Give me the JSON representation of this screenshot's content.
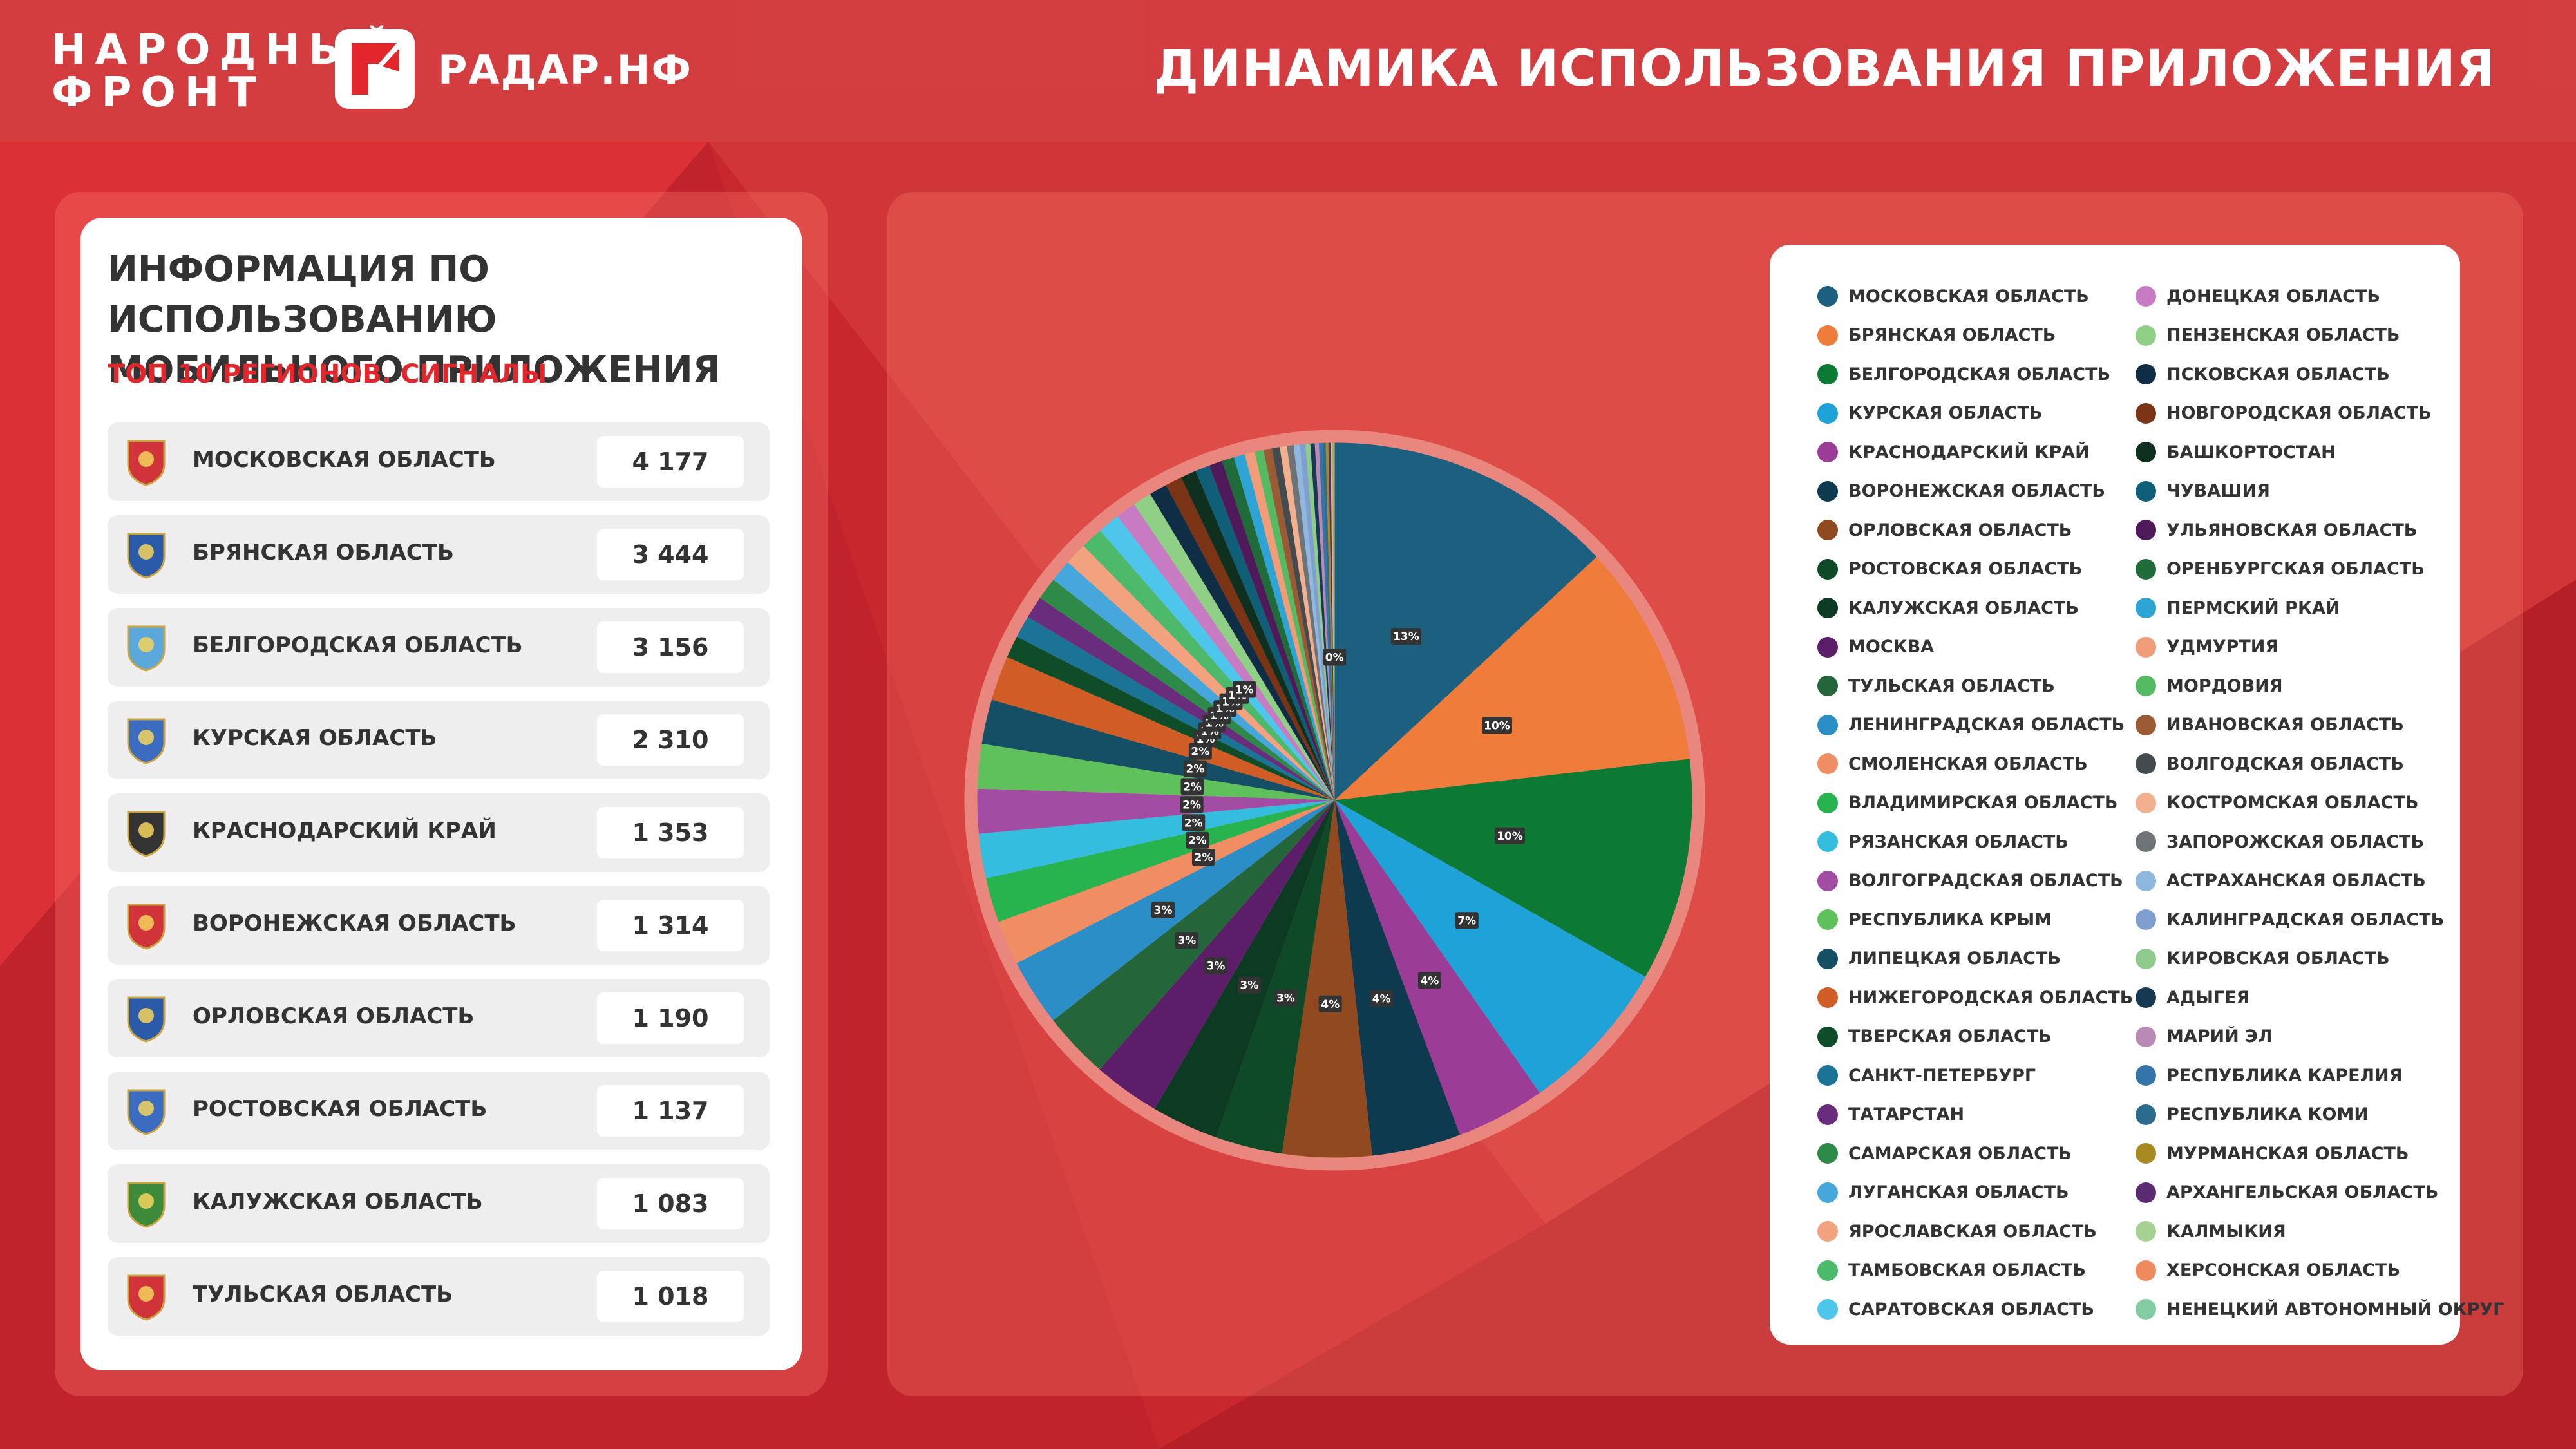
{
  "header": {
    "brand_line1": "НАРОДНЫЙ",
    "brand_line2": "ФРОНТ",
    "app_name": "РАДАР.НФ",
    "page_title": "ДИНАМИКА ИСПОЛЬЗОВАНИЯ ПРИЛОЖЕНИЯ"
  },
  "info_card": {
    "title": "ИНФОРМАЦИЯ ПО ИСПОЛЬЗОВАНИЮ МОБИЛЬНОГО ПРИЛОЖЕНИЯ",
    "subtitle": "ТОП 10 РЕГИОНОВ. СИГНАЛЫ",
    "regions": [
      {
        "name": "МОСКОВСКАЯ ОБЛАСТЬ",
        "value": "4 177",
        "emblem": "moscow-oblast-emblem",
        "emblem_color": "#d0343a"
      },
      {
        "name": "БРЯНСКАЯ ОБЛАСТЬ",
        "value": "3 444",
        "emblem": "bryansk-emblem",
        "emblem_color": "#2a5aa8"
      },
      {
        "name": "БЕЛГОРОДСКАЯ ОБЛАСТЬ",
        "value": "3 156",
        "emblem": "belgorod-emblem",
        "emblem_color": "#5aa8dc"
      },
      {
        "name": "КУРСКАЯ ОБЛАСТЬ",
        "value": "2 310",
        "emblem": "kursk-emblem",
        "emblem_color": "#3b6cc0"
      },
      {
        "name": "КРАСНОДАРСКИЙ КРАЙ",
        "value": "1 353",
        "emblem": "krasnodar-emblem",
        "emblem_color": "#333333"
      },
      {
        "name": "ВОРОНЕЖСКАЯ ОБЛАСТЬ",
        "value": "1 314",
        "emblem": "voronezh-emblem",
        "emblem_color": "#d0343a"
      },
      {
        "name": "ОРЛОВСКАЯ ОБЛАСТЬ",
        "value": "1 190",
        "emblem": "orel-emblem",
        "emblem_color": "#2a5aa8"
      },
      {
        "name": "РОСТОВСКАЯ ОБЛАСТЬ",
        "value": "1 137",
        "emblem": "rostov-emblem",
        "emblem_color": "#3b6cc0"
      },
      {
        "name": "КАЛУЖСКАЯ ОБЛАСТЬ",
        "value": "1 083",
        "emblem": "kaluga-emblem",
        "emblem_color": "#3d8a3a"
      },
      {
        "name": "ТУЛЬСКАЯ ОБЛАСТЬ",
        "value": "1 018",
        "emblem": "tula-emblem",
        "emblem_color": "#d0343a"
      }
    ]
  },
  "chart_data": {
    "type": "pie",
    "categories": [
      "МОСКОВСКАЯ ОБЛАСТЬ",
      "БРЯНСКАЯ ОБЛАСТЬ",
      "БЕЛГОРОДСКАЯ ОБЛАСТЬ",
      "КУРСКАЯ ОБЛАСТЬ",
      "КРАСНОДАРСКИЙ КРАЙ",
      "ВОРОНЕЖСКАЯ ОБЛАСТЬ",
      "ОРЛОВСКАЯ ОБЛАСТЬ",
      "РОСТОВСКАЯ ОБЛАСТЬ",
      "КАЛУЖСКАЯ ОБЛАСТЬ",
      "МОСКВА",
      "ТУЛЬСКАЯ ОБЛАСТЬ",
      "ЛЕНИНГРАДСКАЯ ОБЛАСТЬ",
      "СМОЛЕНСКАЯ ОБЛАСТЬ",
      "ВЛАДИМИРСКАЯ ОБЛАСТЬ",
      "РЯЗАНСКАЯ ОБЛАСТЬ",
      "ВОЛГОГРАДСКАЯ ОБЛАСТЬ",
      "РЕСПУБЛИКА КРЫМ",
      "ЛИПЕЦКАЯ ОБЛАСТЬ",
      "НИЖЕГОРОДСКАЯ ОБЛАСТЬ",
      "ТВЕРСКАЯ ОБЛАСТЬ",
      "САНКТ-ПЕТЕРБУРГ",
      "ТАТАРСТАН",
      "САМАРСКАЯ ОБЛАСТЬ",
      "ЛУГАНСКАЯ ОБЛАСТЬ",
      "ЯРОСЛАВСКАЯ ОБЛАСТЬ",
      "ТАМБОВСКАЯ ОБЛАСТЬ",
      "САРАТОВСКАЯ ОБЛАСТЬ",
      "ДОНЕЦКАЯ ОБЛАСТЬ",
      "ПЕНЗЕНСКАЯ ОБЛАСТЬ",
      "ПСКОВСКАЯ ОБЛАСТЬ",
      "НОВГОРОДСКАЯ ОБЛАСТЬ",
      "БАШКОРТОСТАН",
      "ЧУВАШИЯ",
      "УЛЬЯНОВСКАЯ ОБЛАСТЬ",
      "ОРЕНБУРГСКАЯ ОБЛАСТЬ",
      "ПЕРМСКИЙ РКАЙ",
      "УДМУРТИЯ",
      "МОРДОВИЯ",
      "ИВАНОВСКАЯ ОБЛАСТЬ",
      "ВОЛГОДСКАЯ ОБЛАСТЬ",
      "КОСТРОМСКАЯ ОБЛАСТЬ",
      "ЗАПОРОЖСКАЯ ОБЛАСТЬ",
      "АСТРАХАНСКАЯ ОБЛАСТЬ",
      "КАЛИНГРАДСКАЯ ОБЛАСТЬ",
      "КИРОВСКАЯ ОБЛАСТЬ",
      "АДЫГЕЯ",
      "МАРИЙ ЭЛ",
      "РЕСПУБЛИКА КАРЕЛИЯ",
      "РЕСПУБЛИКА КОМИ",
      "МУРМАНСКАЯ ОБЛАСТЬ",
      "АРХАНГЕЛЬСКАЯ ОБЛАСТЬ",
      "КАЛМЫКИЯ",
      "ХЕРСОНСКАЯ ОБЛАСТЬ",
      "НЕНЕЦКИЙ АВТОНОМНЫЙ ОКРУГ"
    ],
    "values": [
      13,
      10,
      10,
      7,
      4,
      4,
      4,
      3,
      3,
      3,
      3,
      3,
      2,
      2,
      2,
      2,
      2,
      2,
      2,
      1,
      1,
      1,
      1,
      1,
      1,
      1,
      1,
      0.9,
      0.85,
      0.8,
      0.75,
      0.7,
      0.65,
      0.6,
      0.55,
      0.5,
      0.45,
      0.4,
      0.38,
      0.35,
      0.32,
      0.3,
      0.27,
      0.25,
      0.22,
      0.2,
      0.18,
      0.16,
      0.14,
      0.12,
      0.1,
      0.08,
      0.06,
      0.04
    ],
    "labels": [
      "13%",
      "10%",
      "10%",
      "7%",
      "4%",
      "4%",
      "4%",
      "3%",
      "3%",
      "3%",
      "3%",
      "3%",
      "2%",
      "2%",
      "2%",
      "2%",
      "2%",
      "2%",
      "2%",
      "1%",
      "1%",
      "1%",
      "1%",
      "1%",
      "1%",
      "1%",
      "1%",
      "",
      "",
      "",
      "",
      "",
      "",
      "",
      "",
      "",
      "",
      "",
      "",
      "",
      "",
      "",
      "",
      "",
      "",
      "",
      "",
      "",
      "",
      "",
      "",
      "",
      "",
      "0%"
    ],
    "colors": [
      "#1c5f7e",
      "#f07c3c",
      "#0c7a35",
      "#1fa2d8",
      "#9b3d96",
      "#0e3a4f",
      "#914920",
      "#0e4a28",
      "#0c3a22",
      "#5c1e68",
      "#24653a",
      "#2b8ec6",
      "#f08d63",
      "#27b34d",
      "#35bde0",
      "#a24ca4",
      "#5fc15b",
      "#144f66",
      "#d05c26",
      "#0f4d29",
      "#1b7395",
      "#6a2d7e",
      "#2e8a48",
      "#46a7dc",
      "#f2a27f",
      "#4cba6a",
      "#4ec6ec",
      "#c77bc3",
      "#8fcf86",
      "#0f2e45",
      "#7a3415",
      "#0f2f1f",
      "#0f5f78",
      "#4e1a5a",
      "#1f6b3a",
      "#2ea4d4",
      "#f09c78",
      "#55bb63",
      "#9a5a34",
      "#444b4e",
      "#f2b08e",
      "#6e7378",
      "#8fb8df",
      "#7f9fd0",
      "#8ec98d",
      "#173a52",
      "#b88ab4",
      "#3474a8",
      "#2a6b8e",
      "#a88a22",
      "#5a2a72",
      "#a5d193",
      "#ee8a5e",
      "#83cba3"
    ],
    "title": "ДИНАМИКА ИСПОЛЬЗОВАНИЯ ПРИЛОЖЕНИЯ",
    "legend_position": "right"
  }
}
